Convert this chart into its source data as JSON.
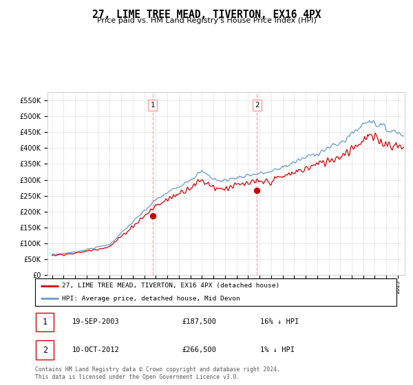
{
  "title": "27, LIME TREE MEAD, TIVERTON, EX16 4PX",
  "subtitle": "Price paid vs. HM Land Registry's House Price Index (HPI)",
  "legend_line1": "27, LIME TREE MEAD, TIVERTON, EX16 4PX (detached house)",
  "legend_line2": "HPI: Average price, detached house, Mid Devon",
  "transaction1_label": "1",
  "transaction1_date": "19-SEP-2003",
  "transaction1_price": "£187,500",
  "transaction1_hpi": "16% ↓ HPI",
  "transaction2_label": "2",
  "transaction2_date": "10-OCT-2012",
  "transaction2_price": "£266,500",
  "transaction2_hpi": "1% ↓ HPI",
  "footer": "Contains HM Land Registry data © Crown copyright and database right 2024.\nThis data is licensed under the Open Government Licence v3.0.",
  "ylim_min": 0,
  "ylim_max": 575000,
  "hpi_color": "#6699cc",
  "price_color": "#cc0000",
  "marker1_date_num": 2003.72,
  "marker1_price": 187500,
  "marker2_date_num": 2012.77,
  "marker2_price": 266500,
  "vline1_date": 2003.72,
  "vline2_date": 2012.77,
  "vline_color": "#ff9999",
  "label_box_color": "#ff9999",
  "background_color": "#ffffff",
  "grid_color": "#e0e0e0"
}
